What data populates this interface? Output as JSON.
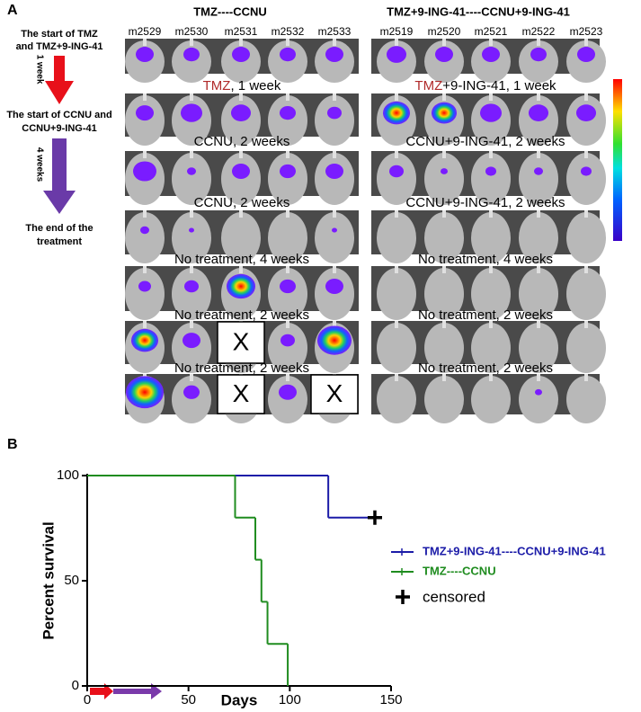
{
  "panel_a": {
    "letter": "A",
    "group_titles": [
      "TMZ----CCNU",
      "TMZ+9-ING-41----CCNU+9-ING-41"
    ],
    "left_mice": [
      "m2529",
      "m2530",
      "m2531",
      "m2532",
      "m2533"
    ],
    "right_mice": [
      "m2519",
      "m2520",
      "m2521",
      "m2522",
      "m2523"
    ],
    "timeline": {
      "start1": [
        "The start of TMZ",
        "and TMZ+9-ING-41"
      ],
      "gap1": "1 week",
      "start2": [
        "The start of CCNU and",
        "CCNU+9-ING-41"
      ],
      "gap2": "4 weeks",
      "end": [
        "The end of the",
        "treatment"
      ]
    },
    "row_labels": [
      {
        "left": [
          "TMZ",
          ", 1 week"
        ],
        "right": [
          "TMZ",
          "+9-ING-41, 1 week"
        ]
      },
      {
        "left": [
          "CCNU, 2 weeks"
        ],
        "right": [
          "CCNU+9-ING-41, 2 weeks"
        ]
      },
      {
        "left": [
          "CCNU, 2 weeks"
        ],
        "right": [
          "CCNU+9-ING-41, 2 weeks"
        ]
      },
      {
        "left": [
          "No treatment, 4 weeks"
        ],
        "right": [
          "No treatment, 4 weeks"
        ]
      },
      {
        "left": [
          "No treatment, 2 weeks"
        ],
        "right": [
          "No treatment, 2 weeks"
        ]
      },
      {
        "left": [
          "No treatment, 2 weeks"
        ],
        "right": [
          "No treatment, 2 weeks"
        ]
      }
    ],
    "left_rows": [
      [
        null,
        null,
        null,
        null,
        null
      ],
      [
        null,
        null,
        null,
        null,
        null
      ],
      [
        null,
        null,
        null,
        null,
        null
      ],
      [
        null,
        null,
        null,
        null,
        null
      ],
      [
        null,
        null,
        null,
        null,
        null
      ],
      [
        null,
        null,
        "X",
        null,
        null
      ],
      [
        null,
        null,
        "X",
        null,
        "X"
      ]
    ]
  },
  "chart_data": {
    "type": "survival",
    "panel_letter": "B",
    "x_label": "Days",
    "y_label": "Percent survival",
    "xlim": [
      0,
      150
    ],
    "xticks": [
      0,
      50,
      100,
      150
    ],
    "ylim": [
      0,
      100
    ],
    "yticks": [
      0,
      50,
      100
    ],
    "series": [
      {
        "name": "TMZ+9-ING-41----CCNU+9-ING-41",
        "color": "#1c1ca8",
        "x": [
          0,
          119
        ],
        "values": [
          100,
          80
        ]
      },
      {
        "name": "TMZ----CCNU",
        "color": "#1f8c1f",
        "x": [
          0,
          73,
          83,
          86,
          89,
          99
        ],
        "values": [
          100,
          80,
          60,
          40,
          20,
          0
        ]
      }
    ],
    "censored": {
      "x": 142,
      "y": 80
    },
    "censored_label": "censored"
  }
}
